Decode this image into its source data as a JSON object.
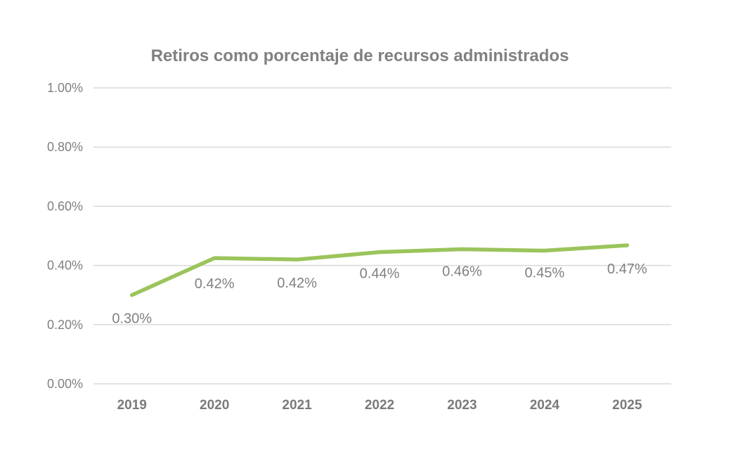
{
  "chart_data": {
    "type": "line",
    "title": "Retiros como porcentaje de recursos administrados",
    "xlabel": "",
    "ylabel": "",
    "categories": [
      "2019",
      "2020",
      "2021",
      "2022",
      "2023",
      "2024",
      "2025"
    ],
    "series": [
      {
        "name": "Retiros",
        "values": [
          0.3,
          0.425,
          0.42,
          0.445,
          0.455,
          0.45,
          0.468
        ],
        "labels": [
          "0.30%",
          "0.42%",
          "0.42%",
          "0.44%",
          "0.46%",
          "0.45%",
          "0.47%"
        ],
        "color": "#9bc45c"
      }
    ],
    "ylim": [
      0,
      1.0
    ],
    "yticks": [
      0,
      0.2,
      0.4,
      0.6,
      0.8,
      1.0
    ],
    "ytick_labels": [
      "0.00%",
      "0.20%",
      "0.40%",
      "0.60%",
      "0.80%",
      "1.00%"
    ],
    "grid": true,
    "legend": "none"
  }
}
